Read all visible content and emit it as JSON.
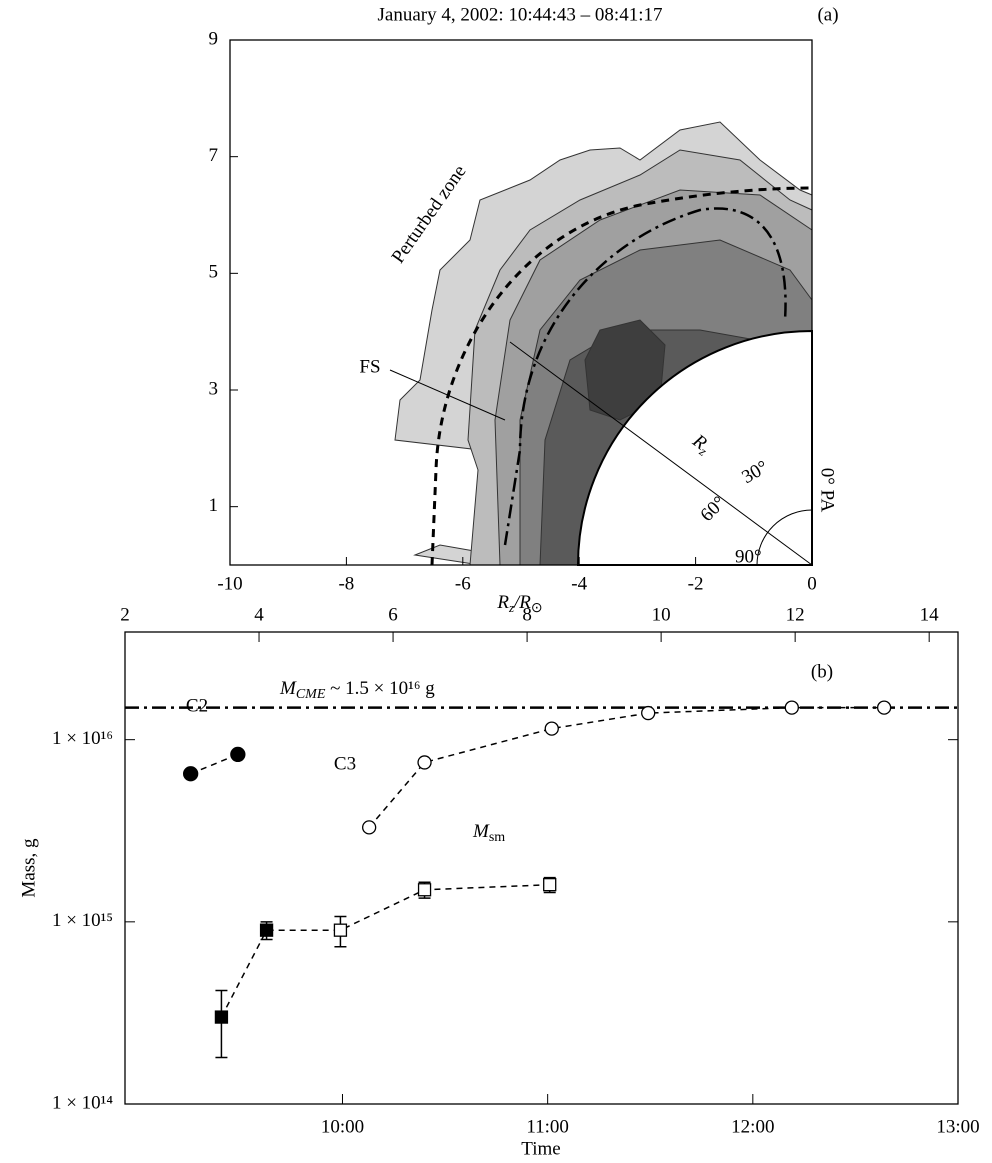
{
  "chart_data": [
    {
      "type": "contour",
      "title": "January 4, 2002: 10:44:43 – 08:41:17",
      "panel_label": "(a)",
      "x_label": [
        "R",
        "z",
        "/R",
        "⊙"
      ],
      "xlim": [
        -10,
        0
      ],
      "ylim": [
        0,
        9
      ],
      "xticks": [
        -10,
        -8,
        -6,
        -4,
        -2,
        0
      ],
      "yticks": [
        1,
        3,
        5,
        7,
        9
      ],
      "annotations": {
        "zone": "Perturbed zone",
        "fs": "FS",
        "rz": [
          "R",
          "z"
        ],
        "a30": "30°",
        "a60": "60°",
        "a90": "90°",
        "pa": "0° PA"
      }
    },
    {
      "type": "line",
      "panel_label": "(b)",
      "x_label": "Time",
      "y_label": "Mass, g",
      "xlim": [
        8.94,
        13
      ],
      "xticks": [
        {
          "value": 10,
          "label": "10:00"
        },
        {
          "value": 11,
          "label": "11:00"
        },
        {
          "value": 12,
          "label": "12:00"
        },
        {
          "value": 13,
          "label": "13:00"
        }
      ],
      "x2lim": [
        2,
        14.43
      ],
      "x2ticks": [
        2,
        4,
        6,
        8,
        10,
        12,
        14
      ],
      "ylim": [
        100000000000000.0,
        3.9e+16
      ],
      "log_y": true,
      "yticks": [
        {
          "value": 100000000000000.0,
          "label": "1 × 10¹⁴"
        },
        {
          "value": 1000000000000000.0,
          "label": "1 × 10¹⁵"
        },
        {
          "value": 1e+16,
          "label": "1 × 10¹⁶"
        }
      ],
      "hline": 1.5e+16,
      "hline_label": [
        "M",
        "CME",
        " ~ 1.5 × 10¹⁶ g"
      ],
      "series": [
        {
          "label": "C2",
          "color": "#000000",
          "x": [
            9.26,
            9.49
          ],
          "values": [
            6500000000000000.0,
            8300000000000000.0
          ],
          "markers": [
            "filled-circle",
            "filled-circle"
          ]
        },
        {
          "label": "C3",
          "color": "#000000",
          "x": [
            10.13,
            10.4,
            11.02,
            11.49,
            12.19,
            12.64
          ],
          "values": [
            3300000000000000.0,
            7500000000000000.0,
            1.15e+16,
            1.4e+16,
            1.5e+16,
            1.5e+16
          ],
          "markers": [
            "open-circle",
            "open-circle",
            "open-circle",
            "open-circle",
            "open-circle",
            "open-circle"
          ]
        },
        {
          "label": [
            "M",
            "sm"
          ],
          "color": "#000000",
          "x": [
            9.41,
            9.63,
            9.99,
            10.4,
            11.01
          ],
          "values": [
            300000000000000.0,
            900000000000000.0,
            900000000000000.0,
            1500000000000000.0,
            1600000000000000.0
          ],
          "errors": [
            120000000000000.0,
            100000000000000.0,
            170000000000000.0,
            150000000000000.0,
            150000000000000.0
          ],
          "markers": [
            "filled-square",
            "filled-square",
            "open-square",
            "open-square",
            "open-square"
          ]
        }
      ]
    }
  ]
}
